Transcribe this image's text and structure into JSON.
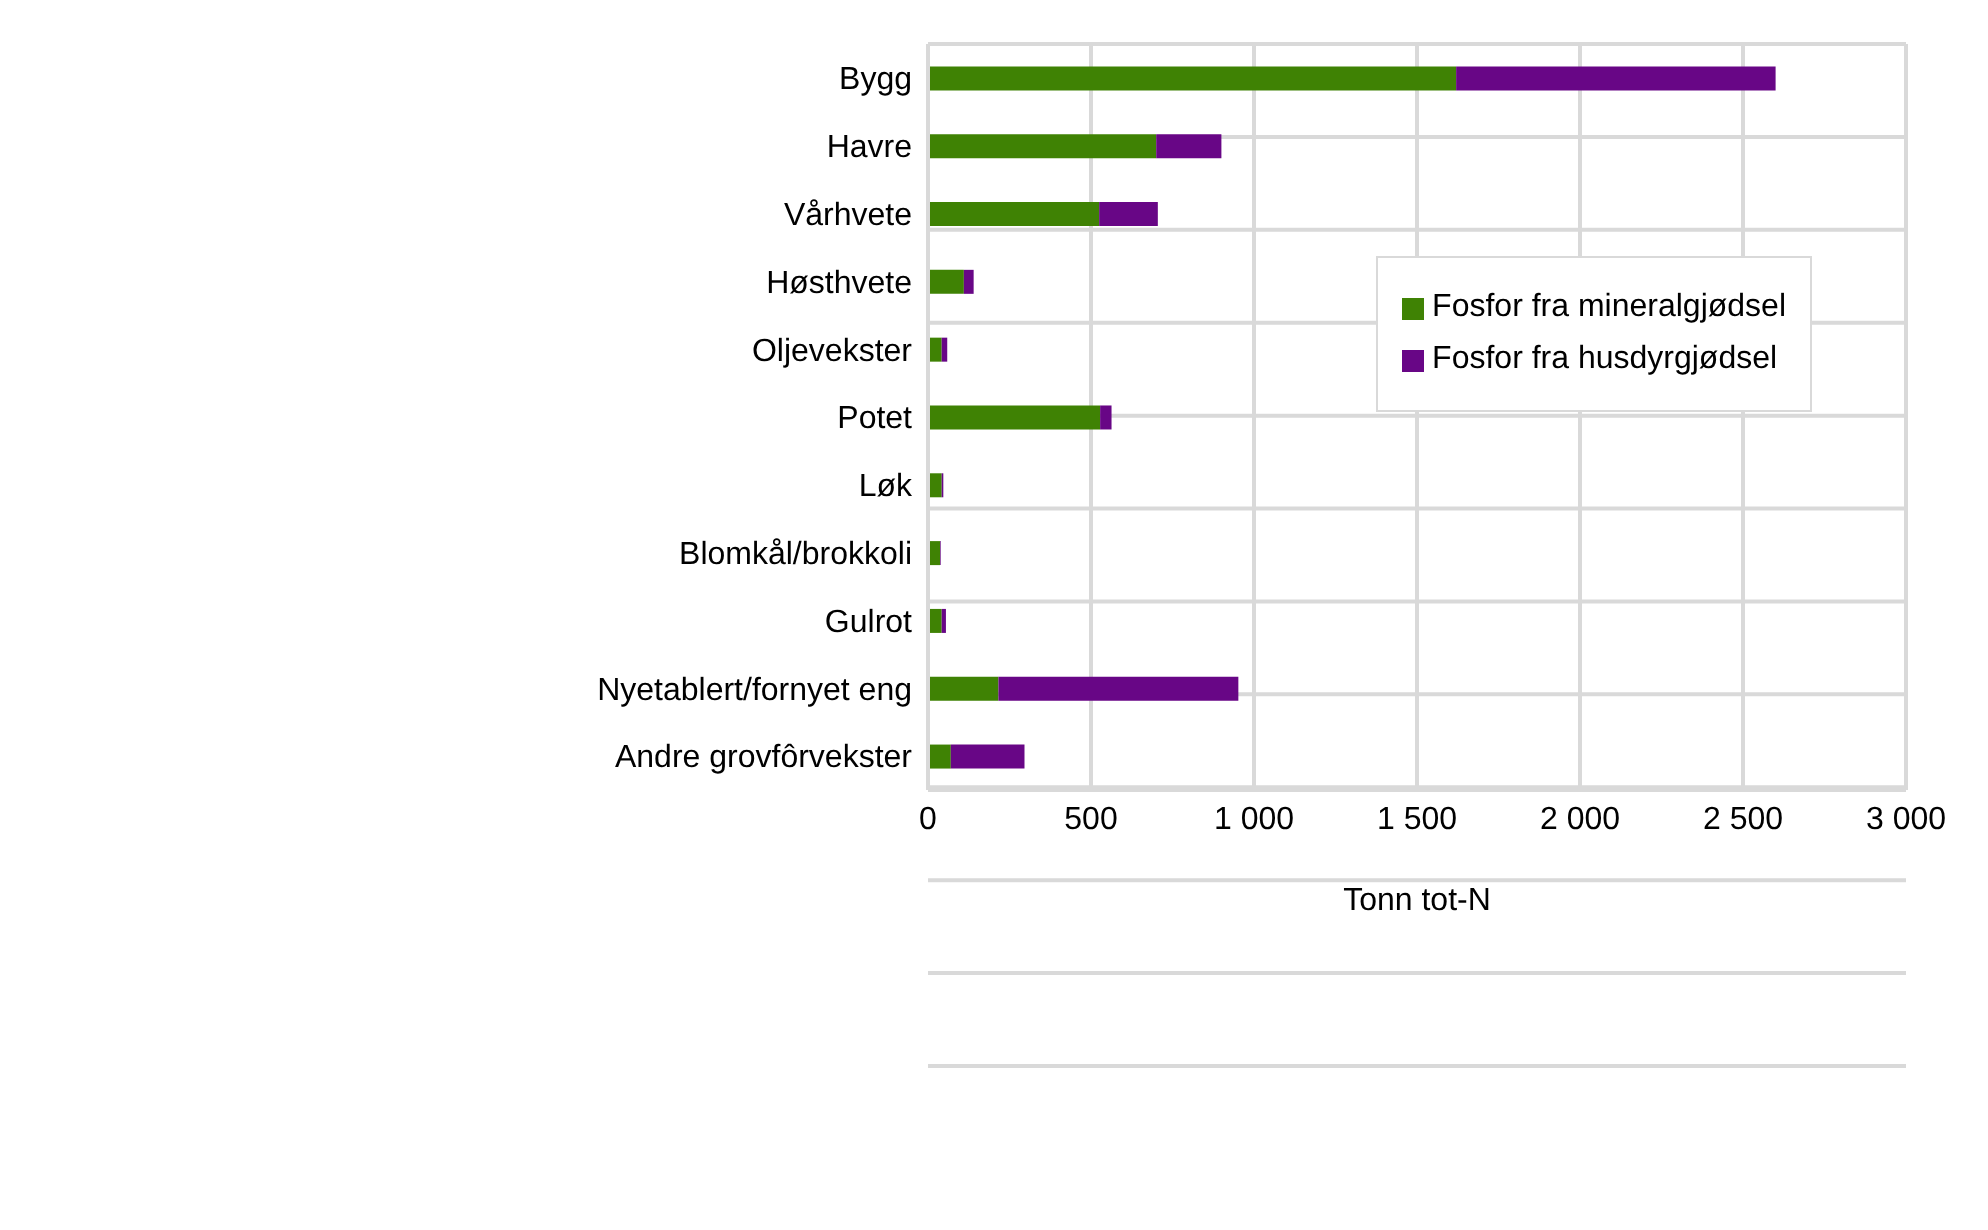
{
  "chart_data": {
    "type": "bar",
    "orientation": "horizontal",
    "stacked": true,
    "categories": [
      "Bygg",
      "Havre",
      "Vårhvete",
      "Høsthvete",
      "Oljevekster",
      "Potet",
      "Løk",
      "Blomkål/brokkoli",
      "Gulrot",
      "Nyetablert/fornyet eng",
      "Andre grovfôrvekster"
    ],
    "series": [
      {
        "name": "Fosfor fra mineralgjødsel",
        "color": "#3f8204",
        "values": [
          1620,
          700,
          525,
          110,
          42,
          528,
          42,
          37,
          42,
          216,
          70
        ]
      },
      {
        "name": "Fosfor fra husdyrgjødsel",
        "color": "#680686",
        "values": [
          980,
          200,
          180,
          30,
          17,
          35,
          5,
          2,
          13,
          736,
          226
        ]
      }
    ],
    "xlabel": "Tonn tot-N",
    "xlim": [
      0,
      3000
    ],
    "xticks": [
      {
        "value": 0,
        "label": "0"
      },
      {
        "value": 500,
        "label": "500"
      },
      {
        "value": 1000,
        "label": "1 000"
      },
      {
        "value": 1500,
        "label": "1 500"
      },
      {
        "value": 2000,
        "label": "2 000"
      },
      {
        "value": 2500,
        "label": "2 500"
      },
      {
        "value": 3000,
        "label": "3 000"
      }
    ],
    "grid": true,
    "legend": "top right"
  }
}
